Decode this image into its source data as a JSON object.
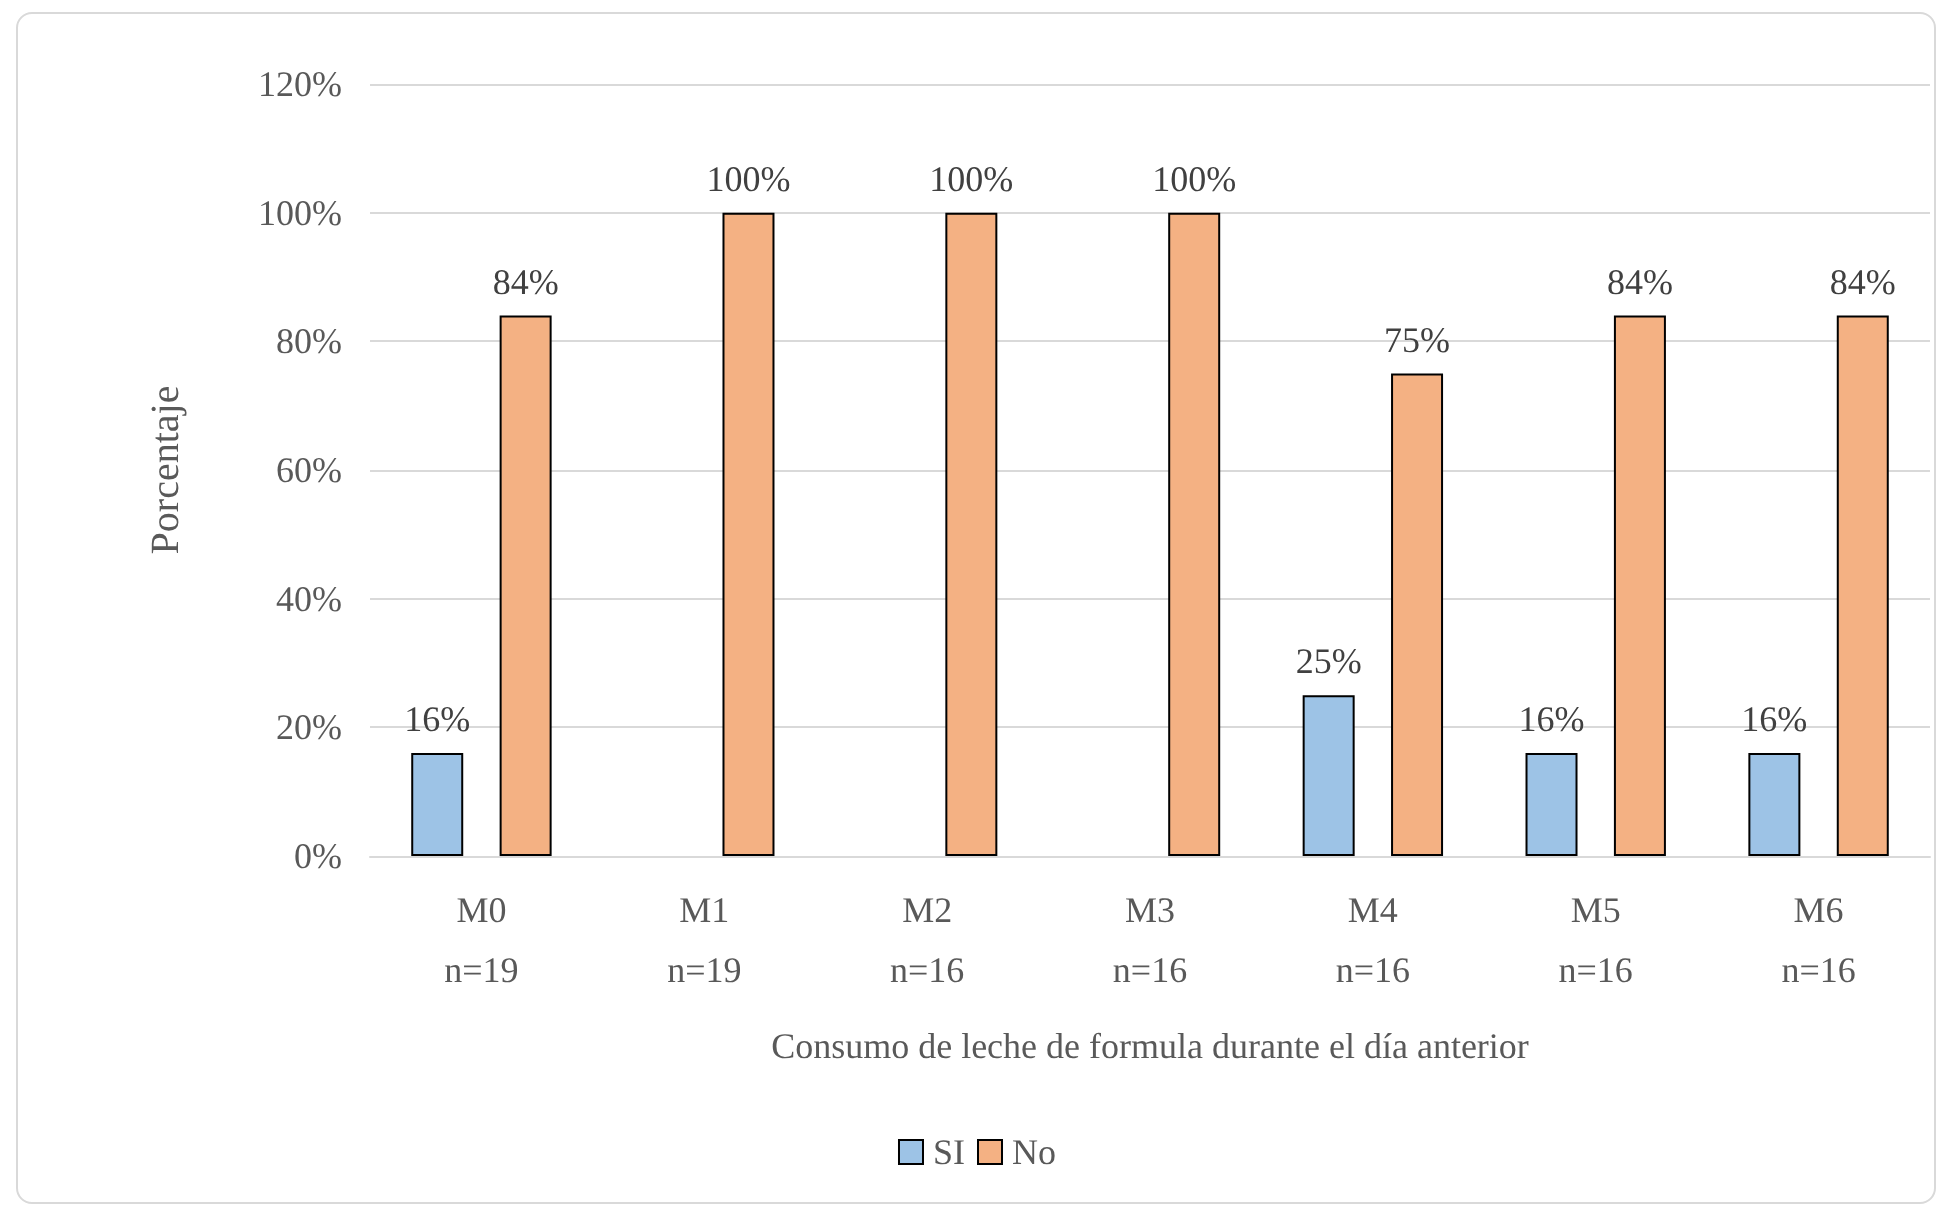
{
  "chart_data": {
    "type": "bar",
    "xlabel": "Consumo de leche de formula durante el día anterior",
    "ylabel": "Porcentaje",
    "categories": [
      "M0\nn=19",
      "M1\nn=19",
      "M2\nn=16",
      "M3\nn=16",
      "M4\nn=16",
      "M5\nn=16",
      "M6\nn=16"
    ],
    "series": [
      {
        "name": "SI",
        "color": "#9dc3e6",
        "values": [
          16,
          null,
          null,
          null,
          25,
          16,
          16
        ],
        "value_labels": [
          "16%",
          null,
          null,
          null,
          "25%",
          "16%",
          "16%"
        ]
      },
      {
        "name": "No",
        "color": "#f4b183",
        "values": [
          84,
          100,
          100,
          100,
          75,
          84,
          84
        ],
        "value_labels": [
          "84%",
          "100%",
          "100%",
          "100%",
          "75%",
          "84%",
          "84%"
        ]
      }
    ],
    "ylim": [
      0,
      120
    ],
    "yticks": [
      {
        "value": 0,
        "label": "0%"
      },
      {
        "value": 20,
        "label": "20%"
      },
      {
        "value": 40,
        "label": "40%"
      },
      {
        "value": 60,
        "label": "60%"
      },
      {
        "value": 80,
        "label": "80%"
      },
      {
        "value": 100,
        "label": "100%"
      },
      {
        "value": 120,
        "label": "120%"
      }
    ],
    "grid": "y",
    "legend": "bottom"
  }
}
